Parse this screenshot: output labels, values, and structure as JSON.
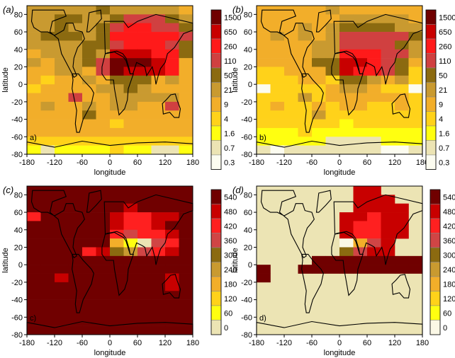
{
  "figure": {
    "panel_tags": [
      "(a)",
      "(b)",
      "(c)",
      "(d)"
    ]
  },
  "chart_data": [
    {
      "type": "heatmap",
      "panel_tag": "(a)",
      "inner_label": "a)",
      "xlabel": "longitude",
      "ylabel": "latitude",
      "xlim": [
        -180,
        180
      ],
      "ylim": [
        -80,
        90
      ],
      "xticks": [
        -180,
        -120,
        -60,
        0,
        60,
        120,
        180
      ],
      "yticks": [
        -80,
        -60,
        -40,
        -20,
        0,
        20,
        40,
        60,
        80
      ],
      "colorbar": {
        "labels": [
          "1500",
          "650",
          "260",
          "110",
          "50",
          "21",
          "9",
          "4",
          "1.6",
          "0.7",
          "0.3"
        ],
        "colors": [
          "#700000",
          "#c80000",
          "#ff1a1a",
          "#d04040",
          "#8b6a10",
          "#c99a30",
          "#f2ae2a",
          "#ffd21a",
          "#ffff10",
          "#ece4b4",
          "#fcfcf0"
        ]
      },
      "x": [
        -165,
        -135,
        -105,
        -75,
        -45,
        -15,
        15,
        45,
        75,
        105,
        135,
        165
      ],
      "y": [
        85,
        75,
        65,
        55,
        45,
        35,
        25,
        15,
        5,
        -5,
        -15,
        -25,
        -35,
        -45,
        -55,
        -65,
        -75
      ],
      "z": [
        [
          5,
          5,
          5,
          5,
          5,
          4,
          5,
          5,
          5,
          5,
          5,
          6
        ],
        [
          5,
          5,
          4,
          4,
          5,
          5,
          4,
          3,
          3,
          3,
          4,
          5
        ],
        [
          5,
          5,
          4,
          5,
          5,
          4,
          3,
          2,
          2,
          3,
          3,
          4
        ],
        [
          5,
          4,
          4,
          4,
          5,
          4,
          2,
          2,
          2,
          2,
          2,
          3
        ],
        [
          5,
          5,
          5,
          5,
          4,
          4,
          3,
          2,
          2,
          2,
          3,
          4
        ],
        [
          6,
          5,
          5,
          5,
          4,
          5,
          1,
          1,
          1,
          2,
          2,
          4
        ],
        [
          5,
          6,
          5,
          5,
          4,
          3,
          0,
          0,
          0,
          1,
          2,
          6
        ],
        [
          6,
          6,
          5,
          5,
          6,
          3,
          0,
          1,
          1,
          1,
          2,
          6
        ],
        [
          6,
          7,
          6,
          6,
          5,
          6,
          4,
          4,
          4,
          6,
          5,
          6
        ],
        [
          7,
          6,
          6,
          6,
          6,
          5,
          5,
          4,
          5,
          6,
          6,
          6
        ],
        [
          6,
          6,
          6,
          3,
          6,
          6,
          5,
          5,
          5,
          5,
          5,
          6
        ],
        [
          6,
          5,
          6,
          6,
          5,
          6,
          5,
          5,
          6,
          6,
          3,
          6
        ],
        [
          6,
          6,
          6,
          6,
          4,
          6,
          6,
          6,
          6,
          6,
          6,
          6
        ],
        [
          6,
          6,
          6,
          6,
          6,
          6,
          7,
          6,
          6,
          6,
          6,
          6
        ],
        [
          6,
          6,
          6,
          6,
          6,
          6,
          6,
          6,
          6,
          6,
          6,
          6
        ],
        [
          7,
          7,
          7,
          7,
          7,
          7,
          7,
          7,
          7,
          7,
          7,
          7
        ],
        [
          8,
          9,
          8,
          8,
          8,
          8,
          7,
          8,
          8,
          9,
          9,
          8
        ]
      ]
    },
    {
      "type": "heatmap",
      "panel_tag": "(b)",
      "inner_label": "b)",
      "xlabel": "longitude",
      "ylabel": "latitude",
      "xlim": [
        -180,
        180
      ],
      "ylim": [
        -80,
        90
      ],
      "xticks": [
        -180,
        -120,
        -60,
        0,
        60,
        120,
        180
      ],
      "yticks": [
        -80,
        -60,
        -40,
        -20,
        0,
        20,
        40,
        60,
        80
      ],
      "colorbar": {
        "labels": [
          "1500",
          "650",
          "260",
          "110",
          "50",
          "21",
          "9",
          "4",
          "1.6",
          "0.7",
          "0.3"
        ],
        "colors": [
          "#700000",
          "#c80000",
          "#ff1a1a",
          "#d04040",
          "#8b6a10",
          "#c99a30",
          "#f2ae2a",
          "#ffd21a",
          "#ffff10",
          "#ece4b4",
          "#fcfcf0"
        ]
      },
      "x": [
        -165,
        -135,
        -105,
        -75,
        -45,
        -15,
        15,
        45,
        75,
        105,
        135,
        165
      ],
      "y": [
        85,
        75,
        65,
        55,
        45,
        35,
        25,
        15,
        5,
        -5,
        -15,
        -25,
        -35,
        -45,
        -55,
        -65,
        -75
      ],
      "z": [
        [
          6,
          6,
          6,
          6,
          6,
          5,
          6,
          6,
          6,
          6,
          6,
          6
        ],
        [
          6,
          6,
          6,
          6,
          6,
          6,
          5,
          5,
          5,
          5,
          5,
          6
        ],
        [
          6,
          6,
          6,
          5,
          6,
          5,
          4,
          4,
          4,
          4,
          5,
          5
        ],
        [
          6,
          5,
          6,
          5,
          6,
          5,
          3,
          3,
          3,
          3,
          3,
          4
        ],
        [
          6,
          6,
          6,
          6,
          5,
          5,
          3,
          3,
          3,
          3,
          4,
          5
        ],
        [
          6,
          6,
          6,
          6,
          5,
          5,
          2,
          2,
          2,
          3,
          3,
          5
        ],
        [
          6,
          6,
          6,
          6,
          4,
          4,
          1,
          1,
          2,
          3,
          4,
          6
        ],
        [
          7,
          7,
          6,
          6,
          6,
          4,
          1,
          2,
          2,
          3,
          4,
          7
        ],
        [
          7,
          7,
          7,
          6,
          6,
          7,
          4,
          4,
          5,
          6,
          5,
          7
        ],
        [
          10,
          7,
          7,
          7,
          7,
          6,
          5,
          5,
          6,
          7,
          7,
          10
        ],
        [
          7,
          7,
          7,
          5,
          7,
          6,
          6,
          6,
          6,
          6,
          6,
          7
        ],
        [
          7,
          6,
          7,
          7,
          6,
          7,
          6,
          6,
          7,
          7,
          6,
          7
        ],
        [
          7,
          7,
          7,
          7,
          5,
          7,
          7,
          7,
          7,
          7,
          7,
          7
        ],
        [
          7,
          7,
          7,
          7,
          7,
          7,
          8,
          7,
          7,
          7,
          7,
          7
        ],
        [
          8,
          8,
          8,
          7,
          8,
          8,
          8,
          8,
          8,
          8,
          8,
          8
        ],
        [
          8,
          8,
          8,
          8,
          8,
          9,
          9,
          9,
          9,
          8,
          8,
          8
        ],
        [
          9,
          10,
          9,
          9,
          9,
          9,
          9,
          9,
          9,
          10,
          10,
          9
        ]
      ]
    },
    {
      "type": "heatmap",
      "panel_tag": "(c)",
      "inner_label": "c)",
      "xlabel": "longitude",
      "ylabel": "latitude",
      "xlim": [
        -180,
        180
      ],
      "ylim": [
        -80,
        90
      ],
      "xticks": [
        -180,
        -120,
        -60,
        0,
        60,
        120,
        180
      ],
      "yticks": [
        -80,
        -60,
        -40,
        -20,
        0,
        20,
        40,
        60,
        80
      ],
      "colorbar": {
        "labels": [
          "540",
          "480",
          "420",
          "360",
          "300",
          "240",
          "180",
          "120",
          "60",
          "0"
        ],
        "colors": [
          "#700000",
          "#c80000",
          "#ff2020",
          "#d04545",
          "#8b6a10",
          "#c99a30",
          "#f2ae2a",
          "#ffd21a",
          "#ffff10",
          "#ece4b4"
        ]
      },
      "x": [
        -165,
        -135,
        -105,
        -75,
        -45,
        -15,
        15,
        45,
        75,
        105,
        135,
        165
      ],
      "y": [
        85,
        75,
        65,
        55,
        45,
        35,
        25,
        15,
        5,
        -5,
        -15,
        -25,
        -35,
        -45,
        -55,
        -65,
        -75
      ],
      "z": [
        [
          0,
          0,
          0,
          0,
          0,
          0,
          0,
          0,
          0,
          0,
          0,
          0
        ],
        [
          0,
          0,
          0,
          0,
          0,
          0,
          0,
          0,
          0,
          0,
          0,
          0
        ],
        [
          0,
          0,
          0,
          0,
          0,
          0,
          0,
          1,
          0,
          0,
          0,
          0
        ],
        [
          2,
          0,
          0,
          0,
          0,
          0,
          1,
          2,
          2,
          1,
          1,
          0
        ],
        [
          0,
          0,
          0,
          0,
          0,
          0,
          1,
          2,
          2,
          1,
          0,
          0
        ],
        [
          0,
          0,
          0,
          0,
          0,
          0,
          2,
          3,
          2,
          2,
          1,
          0
        ],
        [
          0,
          0,
          0,
          0,
          0,
          0,
          6,
          8,
          9,
          3,
          2,
          0
        ],
        [
          0,
          0,
          0,
          0,
          2,
          1,
          4,
          5,
          3,
          2,
          1,
          0
        ],
        [
          0,
          0,
          0,
          0,
          0,
          0,
          0,
          0,
          0,
          0,
          0,
          0
        ],
        [
          0,
          0,
          0,
          0,
          0,
          0,
          0,
          0,
          0,
          0,
          0,
          0
        ],
        [
          0,
          0,
          1,
          0,
          0,
          0,
          0,
          0,
          0,
          0,
          1,
          0
        ],
        [
          0,
          0,
          0,
          0,
          0,
          0,
          0,
          0,
          0,
          0,
          1,
          0
        ],
        [
          0,
          0,
          0,
          0,
          0,
          0,
          0,
          0,
          0,
          0,
          0,
          0
        ],
        [
          0,
          0,
          0,
          0,
          0,
          0,
          0,
          0,
          0,
          0,
          0,
          0
        ],
        [
          0,
          0,
          0,
          0,
          0,
          0,
          0,
          0,
          0,
          0,
          0,
          0
        ],
        [
          0,
          0,
          0,
          0,
          0,
          0,
          0,
          0,
          0,
          0,
          0,
          0
        ],
        [
          0,
          0,
          0,
          0,
          0,
          0,
          0,
          0,
          0,
          0,
          0,
          0
        ]
      ]
    },
    {
      "type": "heatmap",
      "panel_tag": "(d)",
      "inner_label": "d)",
      "xlabel": "longitude",
      "ylabel": "latitude",
      "xlim": [
        -180,
        180
      ],
      "ylim": [
        -80,
        90
      ],
      "xticks": [
        -180,
        -120,
        -60,
        0,
        60,
        120,
        180
      ],
      "yticks": [
        -80,
        -60,
        -40,
        -20,
        0,
        20,
        40,
        60,
        80
      ],
      "colorbar": {
        "labels": [
          "540",
          "480",
          "420",
          "360",
          "300",
          "240",
          "180",
          "120",
          "60",
          "0"
        ],
        "colors": [
          "#700000",
          "#c80000",
          "#ff2020",
          "#d04545",
          "#8b6a10",
          "#c99a30",
          "#f2ae2a",
          "#ffd21a",
          "#ffff10",
          "#fbf8e6"
        ],
        "ground_color": "#ece4b4"
      },
      "x": [
        -165,
        -135,
        -105,
        -75,
        -45,
        -15,
        15,
        45,
        75,
        105,
        135,
        165
      ],
      "y": [
        85,
        75,
        65,
        55,
        45,
        35,
        25,
        15,
        5,
        -5,
        -15,
        -25,
        -35,
        -45,
        -55,
        -65,
        -75
      ],
      "z": [
        [
          -1,
          -1,
          -1,
          -1,
          -1,
          -1,
          -1,
          1,
          1,
          -1,
          -1,
          -1
        ],
        [
          -1,
          -1,
          -1,
          -1,
          -1,
          -1,
          -1,
          1,
          1,
          1,
          -1,
          -1
        ],
        [
          -1,
          -1,
          -1,
          -1,
          -1,
          -1,
          -1,
          1,
          1,
          1,
          1,
          -1
        ],
        [
          -1,
          -1,
          -1,
          -1,
          -1,
          -1,
          1,
          1,
          2,
          1,
          1,
          -1
        ],
        [
          -1,
          -1,
          -1,
          -1,
          -1,
          -1,
          1,
          2,
          2,
          1,
          1,
          -1
        ],
        [
          -1,
          -1,
          -1,
          -1,
          -1,
          -1,
          1,
          2,
          2,
          1,
          1,
          -1
        ],
        [
          -1,
          -1,
          -1,
          -1,
          -1,
          -1,
          9,
          6,
          3,
          1,
          -1,
          -1
        ],
        [
          -1,
          -1,
          -1,
          -1,
          -1,
          -1,
          4,
          3,
          1,
          1,
          -1,
          -1
        ],
        [
          -1,
          -1,
          -1,
          -1,
          0,
          0,
          0,
          0,
          0,
          0,
          0,
          0
        ],
        [
          0,
          -1,
          -1,
          0,
          0,
          0,
          0,
          0,
          0,
          0,
          0,
          0
        ],
        [
          0,
          -1,
          -1,
          -1,
          -1,
          -1,
          -1,
          -1,
          -1,
          -1,
          -1,
          -1
        ],
        [
          -1,
          -1,
          -1,
          -1,
          -1,
          -1,
          -1,
          -1,
          -1,
          -1,
          -1,
          -1
        ],
        [
          -1,
          -1,
          -1,
          -1,
          -1,
          -1,
          -1,
          -1,
          -1,
          -1,
          -1,
          -1
        ],
        [
          -1,
          -1,
          -1,
          -1,
          -1,
          -1,
          -1,
          -1,
          -1,
          -1,
          -1,
          -1
        ],
        [
          -1,
          -1,
          -1,
          -1,
          -1,
          -1,
          -1,
          -1,
          -1,
          -1,
          -1,
          -1
        ],
        [
          -1,
          -1,
          -1,
          -1,
          -1,
          -1,
          -1,
          -1,
          -1,
          -1,
          -1,
          -1
        ],
        [
          -1,
          -1,
          -1,
          -1,
          -1,
          -1,
          -1,
          -1,
          -1,
          -1,
          -1,
          -1
        ]
      ]
    }
  ]
}
